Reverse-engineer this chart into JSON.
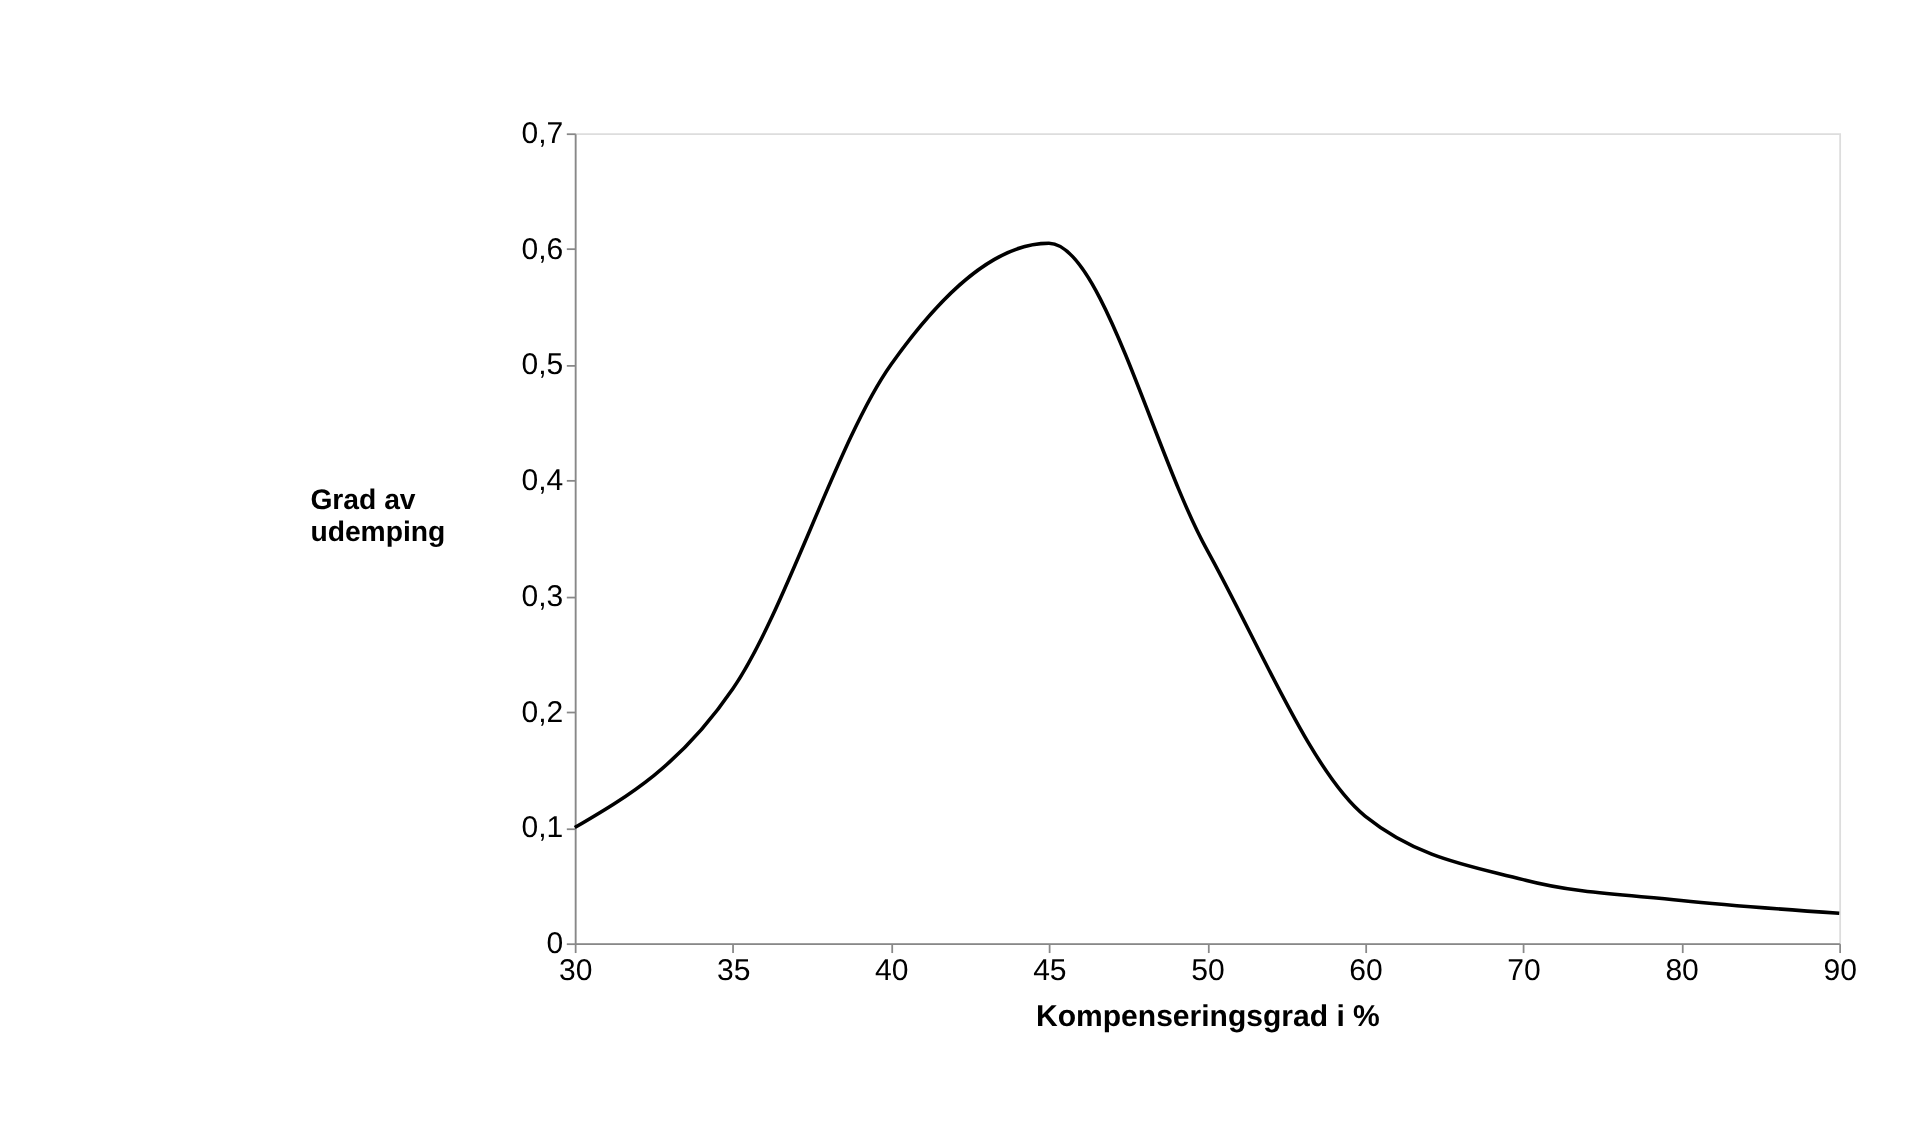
{
  "chart_data": {
    "type": "line",
    "xlabel": "Kompenseringsgrad i %",
    "ylabel": "Grad av\nudemping",
    "categories": [
      "30",
      "35",
      "40",
      "45",
      "50",
      "60",
      "70",
      "80",
      "90"
    ],
    "series": [
      {
        "color": "#000000",
        "values": [
          0.1,
          0.22,
          0.5,
          0.605,
          0.34,
          0.11,
          0.055,
          0.037,
          0.026
        ]
      }
    ],
    "ylim": [
      0,
      0.7
    ],
    "yticks": [
      {
        "value": 0,
        "label": "0"
      },
      {
        "value": 0.1,
        "label": "0,1"
      },
      {
        "value": 0.2,
        "label": "0,2"
      },
      {
        "value": 0.3,
        "label": "0,3"
      },
      {
        "value": 0.4,
        "label": "0,4"
      },
      {
        "value": 0.5,
        "label": "0,5"
      },
      {
        "value": 0.6,
        "label": "0,6"
      },
      {
        "value": 0.7,
        "label": "0,7"
      }
    ],
    "grid": false,
    "marker": "none",
    "line_style": "solid"
  }
}
